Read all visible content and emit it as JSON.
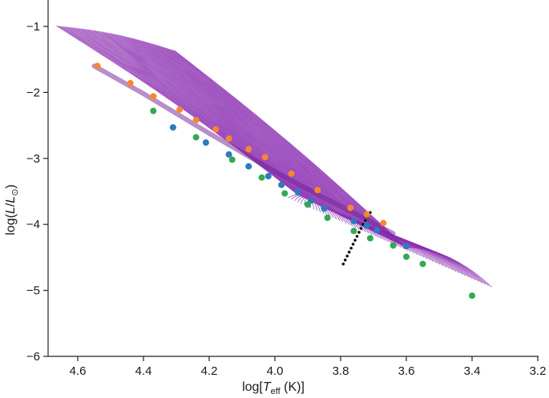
{
  "chart_data": {
    "type": "scatter",
    "xlabel_main": "log[",
    "xlabel_var": "T",
    "xlabel_sub": "eff",
    "xlabel_tail": " (K)]",
    "ylabel_main": "log(",
    "ylabel_var": "L",
    "ylabel_slash": "/",
    "ylabel_var2": "L",
    "ylabel_sub": "⊙",
    "ylabel_tail": ")",
    "xlim": [
      4.7,
      3.2
    ],
    "ylim": [
      -6.0,
      -0.6
    ],
    "x_ticks": [
      4.6,
      4.4,
      4.2,
      4.0,
      3.8,
      3.6,
      3.4,
      3.2
    ],
    "x_tick_labels": [
      "4.6",
      "4.4",
      "4.2",
      "4.0",
      "3.8",
      "3.6",
      "3.4",
      "3.2"
    ],
    "y_ticks": [
      -1,
      -2,
      -3,
      -4,
      -5,
      -6
    ],
    "y_tick_labels": [
      "−1",
      "−2",
      "−3",
      "−4",
      "−5",
      "−6"
    ],
    "colors": {
      "tracks": "#8a2bb0",
      "band": "#6f1f96",
      "orange": "#f5872e",
      "blue": "#2b7bbd",
      "green": "#34a853",
      "bhl": "#111111"
    },
    "series": [
      {
        "name": "orange",
        "points": [
          [
            4.54,
            -1.6
          ],
          [
            4.44,
            -1.86
          ],
          [
            4.37,
            -2.06
          ],
          [
            4.29,
            -2.26
          ],
          [
            4.24,
            -2.42
          ],
          [
            4.18,
            -2.56
          ],
          [
            4.14,
            -2.7
          ],
          [
            4.08,
            -2.86
          ],
          [
            4.03,
            -2.98
          ],
          [
            3.95,
            -3.23
          ],
          [
            3.87,
            -3.48
          ],
          [
            3.77,
            -3.75
          ],
          [
            3.72,
            -3.85
          ],
          [
            3.67,
            -3.98
          ]
        ]
      },
      {
        "name": "blue",
        "points": [
          [
            4.31,
            -2.53
          ],
          [
            4.21,
            -2.76
          ],
          [
            4.14,
            -2.94
          ],
          [
            4.08,
            -3.12
          ],
          [
            4.02,
            -3.27
          ],
          [
            3.98,
            -3.4
          ],
          [
            3.93,
            -3.51
          ],
          [
            3.89,
            -3.64
          ],
          [
            3.85,
            -3.76
          ],
          [
            3.76,
            -3.95
          ],
          [
            3.72,
            -4.02
          ],
          [
            3.69,
            -4.09
          ],
          [
            3.6,
            -4.33
          ]
        ]
      },
      {
        "name": "green",
        "points": [
          [
            4.37,
            -2.28
          ],
          [
            4.24,
            -2.68
          ],
          [
            4.13,
            -3.02
          ],
          [
            4.04,
            -3.29
          ],
          [
            3.97,
            -3.53
          ],
          [
            3.9,
            -3.7
          ],
          [
            3.84,
            -3.9
          ],
          [
            3.76,
            -4.1
          ],
          [
            3.71,
            -4.21
          ],
          [
            3.64,
            -4.32
          ],
          [
            3.6,
            -4.49
          ],
          [
            3.55,
            -4.6
          ],
          [
            3.4,
            -5.08
          ]
        ]
      }
    ],
    "boundary_points": [
      [
        3.71,
        -3.82
      ],
      [
        3.718,
        -3.88
      ],
      [
        3.725,
        -3.94
      ],
      [
        3.732,
        -4.0
      ],
      [
        3.738,
        -4.06
      ],
      [
        3.744,
        -4.12
      ],
      [
        3.75,
        -4.18
      ],
      [
        3.756,
        -4.24
      ],
      [
        3.762,
        -4.3
      ],
      [
        3.768,
        -4.36
      ],
      [
        3.774,
        -4.42
      ],
      [
        3.78,
        -4.48
      ],
      [
        3.786,
        -4.54
      ],
      [
        3.792,
        -4.6
      ]
    ]
  }
}
